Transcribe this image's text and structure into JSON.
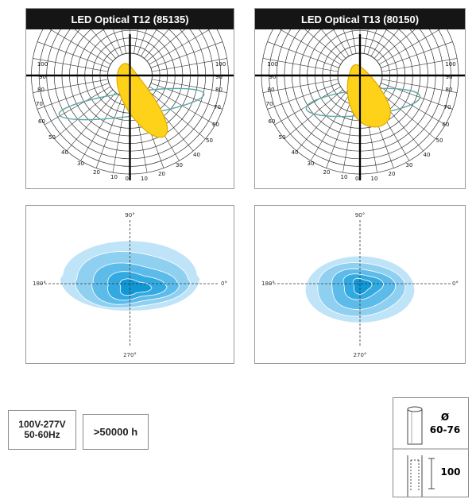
{
  "panels": [
    {
      "title": "LED Optical T12 (85135)",
      "polar_left_labels": [
        "100",
        "90",
        "80",
        "70",
        "60",
        "50",
        "40",
        "30",
        "20",
        "10",
        "0°"
      ],
      "polar_right_labels": [
        "10",
        "20",
        "30",
        "40",
        "50",
        "60",
        "70",
        "80",
        "90",
        "100"
      ]
    },
    {
      "title": "LED Optical T13 (80150)",
      "polar_left_labels": [
        "100",
        "90",
        "80",
        "70",
        "60",
        "50",
        "40",
        "30",
        "20",
        "10",
        "0°"
      ],
      "polar_right_labels": [
        "10",
        "20",
        "30",
        "40",
        "50",
        "60",
        "70",
        "80",
        "90",
        "100"
      ]
    }
  ],
  "isolux": {
    "top": "90°",
    "left": "180°",
    "right": "0°",
    "bottom": "270°"
  },
  "specs": {
    "voltage_line1": "100V-277V",
    "voltage_line2": "50-60Hz",
    "lifetime": ">50000 h"
  },
  "pole": {
    "diameter_symbol": "Ø",
    "diameter_range": "60-76",
    "insertion_depth": "100"
  },
  "colors": {
    "beam_fill": "#ffd21a",
    "beam_outline": "#e0a800",
    "contour_outline": "#5fa8a8",
    "iso_levels": [
      "#bfe4f7",
      "#8fd0f1",
      "#5dbbea",
      "#33a9e1",
      "#1196d6"
    ]
  }
}
